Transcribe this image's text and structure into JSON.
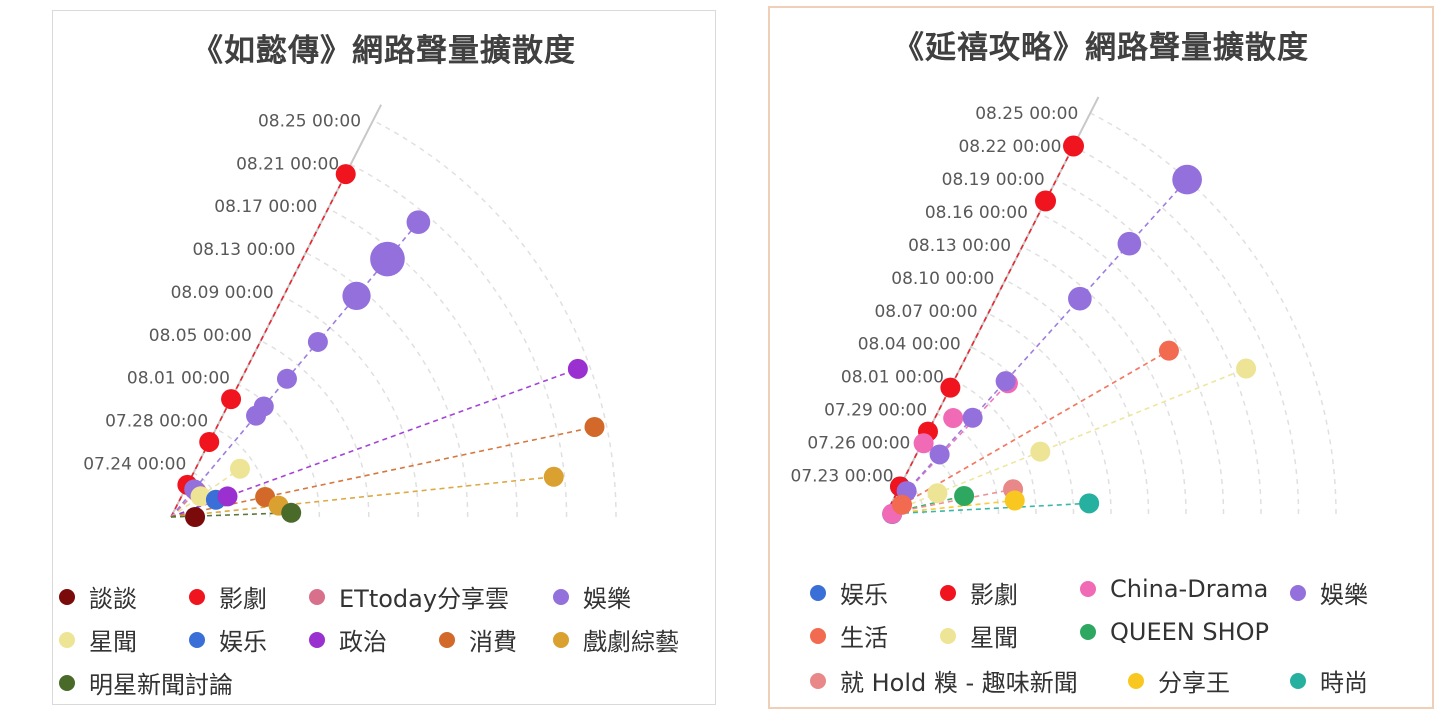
{
  "chart_data": [
    {
      "type": "scatter",
      "title": "《如懿傳》網路聲量擴散度",
      "radial_axis_labels": [
        "07.24 00:00",
        "07.28 00:00",
        "08.01 00:00",
        "08.05 00:00",
        "08.09 00:00",
        "08.13 00:00",
        "08.17 00:00",
        "08.21 00:00",
        "08.25 00:00"
      ],
      "series": [
        {
          "name": "談談",
          "color": "#7b0a0a",
          "points": [
            {
              "date": "07.21 00:00",
              "angle_deg": 0,
              "size": 1
            }
          ]
        },
        {
          "name": "影劇",
          "color": "#f0141e",
          "points": [
            {
              "date": "07.22 00:00",
              "angle_deg": 63,
              "size": 1
            },
            {
              "date": "07.26 00:00",
              "angle_deg": 63,
              "size": 1
            },
            {
              "date": "07.30 00:00",
              "angle_deg": 63,
              "size": 1
            },
            {
              "date": "08.20 00:00",
              "angle_deg": 63,
              "size": 1
            }
          ]
        },
        {
          "name": "ETtoday分享雲",
          "color": "#d9708b",
          "points": [
            {
              "date": "07.22 00:00",
              "angle_deg": 45,
              "size": 1
            }
          ]
        },
        {
          "name": "娛樂",
          "color": "#9370db",
          "points": [
            {
              "date": "07.22 00:00",
              "angle_deg": 50,
              "size": 1
            },
            {
              "date": "07.30 00:00",
              "angle_deg": 50,
              "size": 1
            },
            {
              "date": "07.31 00:00",
              "angle_deg": 50,
              "size": 1
            },
            {
              "date": "08.03 00:00",
              "angle_deg": 50,
              "size": 1
            },
            {
              "date": "08.07 00:00",
              "angle_deg": 50,
              "size": 1
            },
            {
              "date": "08.12 00:00",
              "angle_deg": 50,
              "size": 2
            },
            {
              "date": "08.16 00:00",
              "angle_deg": 50,
              "size": 3
            },
            {
              "date": "08.20 00:00",
              "angle_deg": 50,
              "size": 1.4
            }
          ]
        },
        {
          "name": "星聞",
          "color": "#ede495",
          "points": [
            {
              "date": "07.22 00:00",
              "angle_deg": 35,
              "size": 1
            },
            {
              "date": "07.26 00:00",
              "angle_deg": 35,
              "size": 1
            }
          ]
        },
        {
          "name": "娱乐",
          "color": "#3a6fd8",
          "points": [
            {
              "date": "07.23 00:00",
              "angle_deg": 21,
              "size": 1
            }
          ]
        },
        {
          "name": "政治",
          "color": "#9b30d0",
          "points": [
            {
              "date": "07.24 00:00",
              "angle_deg": 20,
              "size": 1
            },
            {
              "date": "08.24 00:00",
              "angle_deg": 20,
              "size": 1
            }
          ]
        },
        {
          "name": "消費",
          "color": "#d2692a",
          "points": [
            {
              "date": "07.27 00:00",
              "angle_deg": 12,
              "size": 1
            },
            {
              "date": "08.24 00:00",
              "angle_deg": 12,
              "size": 1
            }
          ]
        },
        {
          "name": "戲劇綜藝",
          "color": "#daa030",
          "points": [
            {
              "date": "07.28 00:00",
              "angle_deg": 6,
              "size": 1
            },
            {
              "date": "08.20 00:00",
              "angle_deg": 6,
              "size": 1
            }
          ]
        },
        {
          "name": "明星新聞討論",
          "color": "#4a6a2a",
          "points": [
            {
              "date": "07.29 00:00",
              "angle_deg": 2,
              "size": 1
            }
          ]
        }
      ]
    },
    {
      "type": "scatter",
      "title": "《延禧攻略》網路聲量擴散度",
      "radial_axis_labels": [
        "07.23 00:00",
        "07.26 00:00",
        "07.29 00:00",
        "08.01 00:00",
        "08.04 00:00",
        "08.07 00:00",
        "08.10 00:00",
        "08.13 00:00",
        "08.16 00:00",
        "08.19 00:00",
        "08.22 00:00",
        "08.25 00:00"
      ],
      "series": [
        {
          "name": "娱乐",
          "color": "#3a6fd8",
          "points": [
            {
              "date": "07.20 00:00",
              "angle_deg": 0,
              "size": 1
            },
            {
              "date": "07.22 00:00",
              "angle_deg": 63,
              "size": 1
            }
          ]
        },
        {
          "name": "影劇",
          "color": "#f0141e",
          "points": [
            {
              "date": "07.22 00:00",
              "angle_deg": 63,
              "size": 1
            },
            {
              "date": "07.27 00:00",
              "angle_deg": 63,
              "size": 1
            },
            {
              "date": "07.31 00:00",
              "angle_deg": 63,
              "size": 1
            },
            {
              "date": "08.17 00:00",
              "angle_deg": 63,
              "size": 1.1
            },
            {
              "date": "08.22 00:00",
              "angle_deg": 63,
              "size": 1.1
            }
          ]
        },
        {
          "name": "China-Drama",
          "color": "#f06ab5",
          "points": [
            {
              "date": "07.20 00:00",
              "angle_deg": 2,
              "size": 1
            },
            {
              "date": "07.26 00:00",
              "angle_deg": 62,
              "size": 1
            },
            {
              "date": "07.29 00:00",
              "angle_deg": 55,
              "size": 1
            },
            {
              "date": "08.03 00:00",
              "angle_deg": 47,
              "size": 1
            }
          ]
        },
        {
          "name": "娛樂",
          "color": "#9370db",
          "points": [
            {
              "date": "07.22 00:00",
              "angle_deg": 48,
              "size": 1
            },
            {
              "date": "07.26 00:00",
              "angle_deg": 48,
              "size": 1
            },
            {
              "date": "07.30 00:00",
              "angle_deg": 48,
              "size": 1
            },
            {
              "date": "08.03 00:00",
              "angle_deg": 48,
              "size": 1
            },
            {
              "date": "08.12 00:00",
              "angle_deg": 48,
              "size": 1.4
            },
            {
              "date": "08.18 00:00",
              "angle_deg": 48,
              "size": 1.4
            },
            {
              "date": "08.25 00:00",
              "angle_deg": 48,
              "size": 2.2
            }
          ]
        },
        {
          "name": "生活",
          "color": "#f26a50",
          "points": [
            {
              "date": "07.21 00:00",
              "angle_deg": 30,
              "size": 1
            },
            {
              "date": "08.15 00:00",
              "angle_deg": 30,
              "size": 1
            }
          ]
        },
        {
          "name": "星聞",
          "color": "#ede495",
          "points": [
            {
              "date": "07.24 00:00",
              "angle_deg": 22,
              "size": 1
            },
            {
              "date": "08.02 00:00",
              "angle_deg": 22,
              "size": 1
            },
            {
              "date": "08.20 00:00",
              "angle_deg": 22,
              "size": 1
            }
          ]
        },
        {
          "name": "QUEEN SHOP",
          "color": "#2ea860",
          "points": [
            {
              "date": "07.26 00:00",
              "angle_deg": 13,
              "size": 1
            }
          ]
        },
        {
          "name": "就 Hold 糗 - 趣味新聞",
          "color": "#e88888",
          "points": [
            {
              "date": "07.30 00:00",
              "angle_deg": 11,
              "size": 1
            }
          ]
        },
        {
          "name": "分享王",
          "color": "#f8c820",
          "points": [
            {
              "date": "07.30 00:00",
              "angle_deg": 6,
              "size": 1
            }
          ]
        },
        {
          "name": "時尚",
          "color": "#26b0a0",
          "points": [
            {
              "date": "08.05 00:00",
              "angle_deg": 3,
              "size": 1
            }
          ]
        }
      ]
    }
  ]
}
